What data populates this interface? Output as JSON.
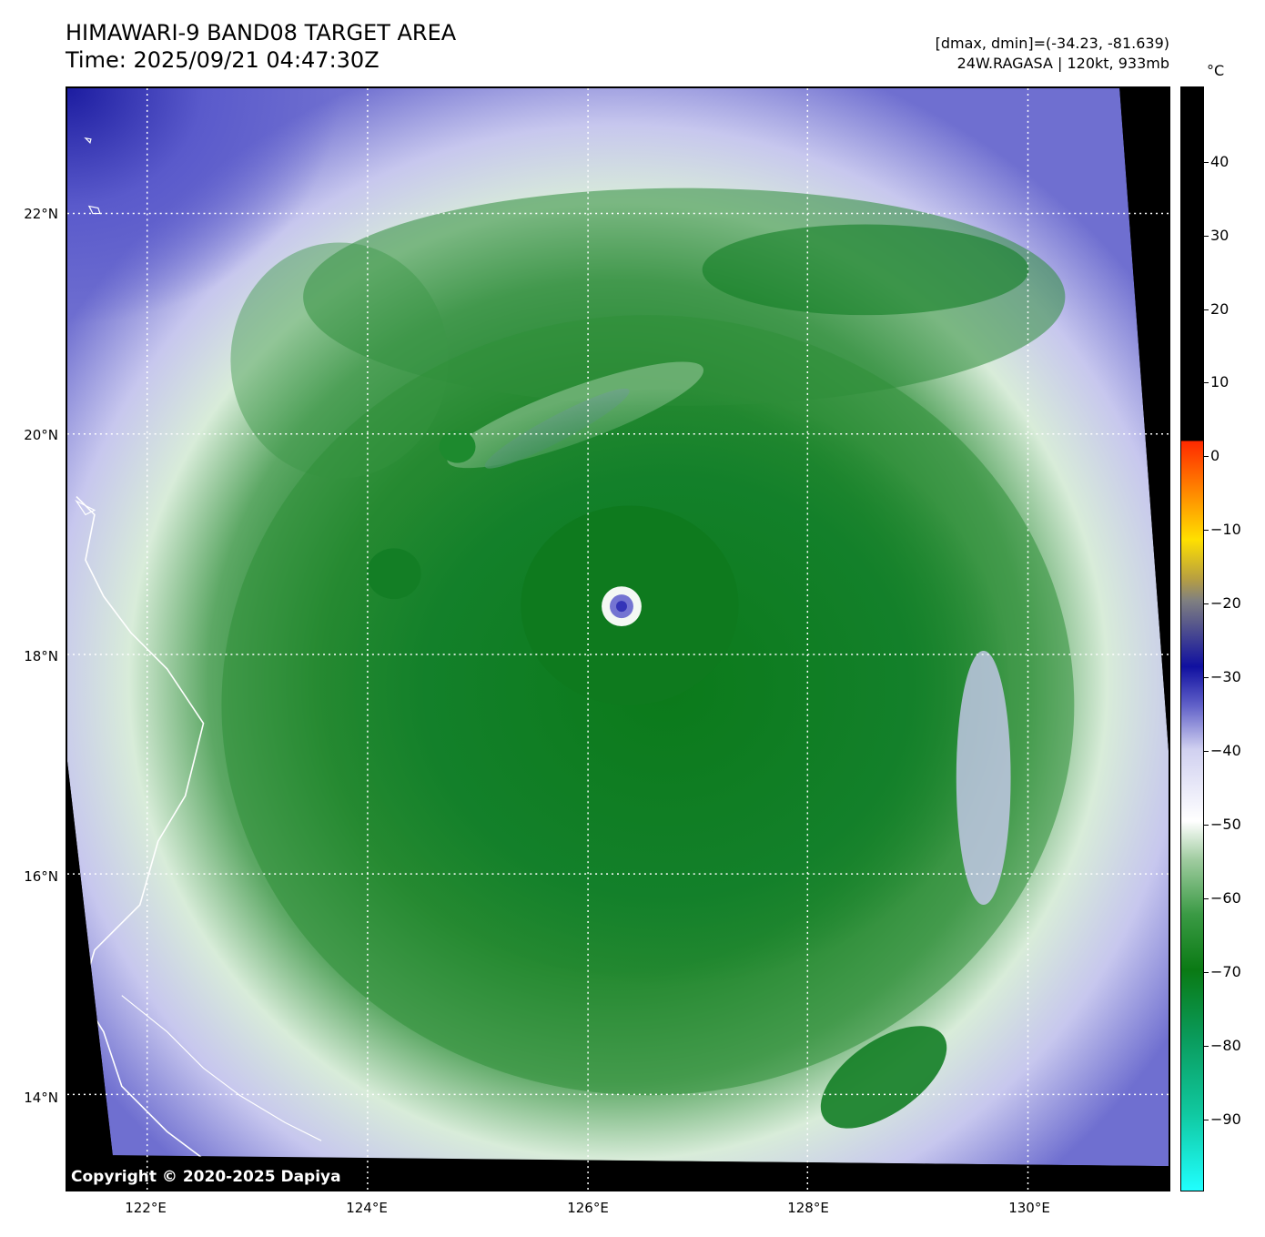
{
  "title": {
    "line1": "HIMAWARI-9 BAND08 TARGET AREA",
    "line2": "Time: 2025/09/21 04:47:30Z"
  },
  "info": {
    "line1": "[dmax, dmin]=(-34.23, -81.639)",
    "line2": "24W.RAGASA | 120kt, 933mb"
  },
  "copyright": "Copyright © 2020-2025 Dapiya",
  "map": {
    "lat_labels": [
      "22°N",
      "20°N",
      "18°N",
      "16°N",
      "14°N"
    ],
    "lon_labels": [
      "122°E",
      "124°E",
      "126°E",
      "128°E",
      "130°E"
    ]
  },
  "colorbar": {
    "unit": "°C",
    "labels": [
      "40",
      "30",
      "20",
      "10",
      "0",
      "−10",
      "−20",
      "−30",
      "−40",
      "−50",
      "−60",
      "−70",
      "−80",
      "−90"
    ]
  },
  "colors": {
    "cloud_green_deep": "#0f7a1f",
    "cloud_green": "#3d9a48",
    "cloud_white": "#f2f7f2",
    "cloud_blue": "#7f7fd9",
    "cloud_navy": "#1a1aa0",
    "land_outline": "#ffffff"
  }
}
